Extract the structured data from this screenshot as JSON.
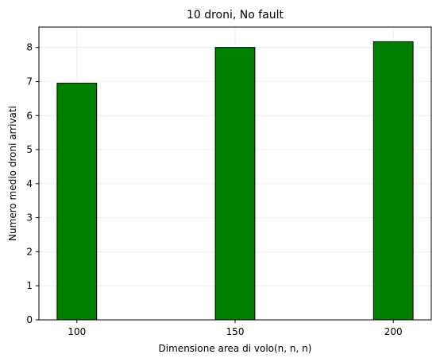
{
  "chart_data": {
    "type": "bar",
    "title": "10 droni, No fault",
    "xlabel": "Dimensione area di volo(n, n, n)",
    "ylabel": "Numero medio droni arrivati",
    "categories": [
      "100",
      "150",
      "200"
    ],
    "x": [
      100,
      150,
      200
    ],
    "values": [
      6.95,
      8.0,
      8.17
    ],
    "xlim": [
      88,
      212
    ],
    "ylim": [
      0,
      8.6
    ],
    "yticks": [
      0,
      1,
      2,
      3,
      4,
      5,
      6,
      7,
      8
    ],
    "xticks": [
      100,
      150,
      200
    ],
    "bar_width": 12.5,
    "bar_color": "#008000",
    "edge_color": "#000000",
    "grid": true,
    "legend": "none"
  }
}
